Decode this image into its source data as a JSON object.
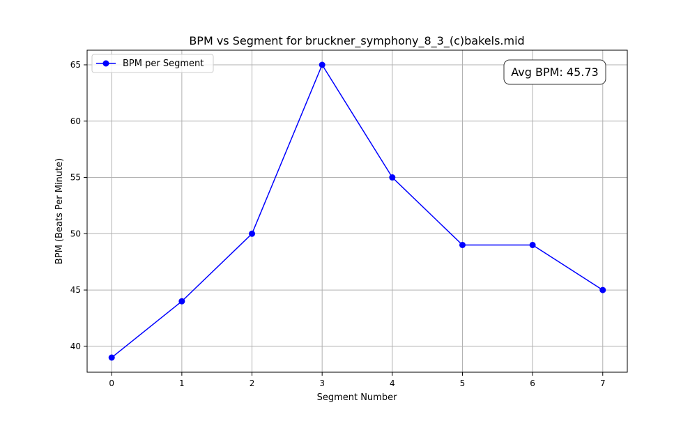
{
  "chart_data": {
    "type": "line",
    "title": "BPM vs Segment for bruckner_symphony_8_3_(c)bakels.mid",
    "xlabel": "Segment Number",
    "ylabel": "BPM (Beats Per Minute)",
    "x": [
      0,
      1,
      2,
      3,
      4,
      5,
      6,
      7
    ],
    "series": [
      {
        "name": "BPM per Segment",
        "values": [
          39,
          44,
          50,
          65,
          55,
          49,
          49,
          45
        ],
        "color": "#0000ff",
        "marker": "circle"
      }
    ],
    "xlim": [
      -0.35,
      7.35
    ],
    "ylim": [
      37.7,
      66.3
    ],
    "xticks": [
      0,
      1,
      2,
      3,
      4,
      5,
      6,
      7
    ],
    "yticks": [
      40,
      45,
      50,
      55,
      60,
      65
    ],
    "grid": true,
    "legend_position": "upper-left",
    "annotation": {
      "text": "Avg BPM: 45.73",
      "position": "upper-right"
    }
  }
}
